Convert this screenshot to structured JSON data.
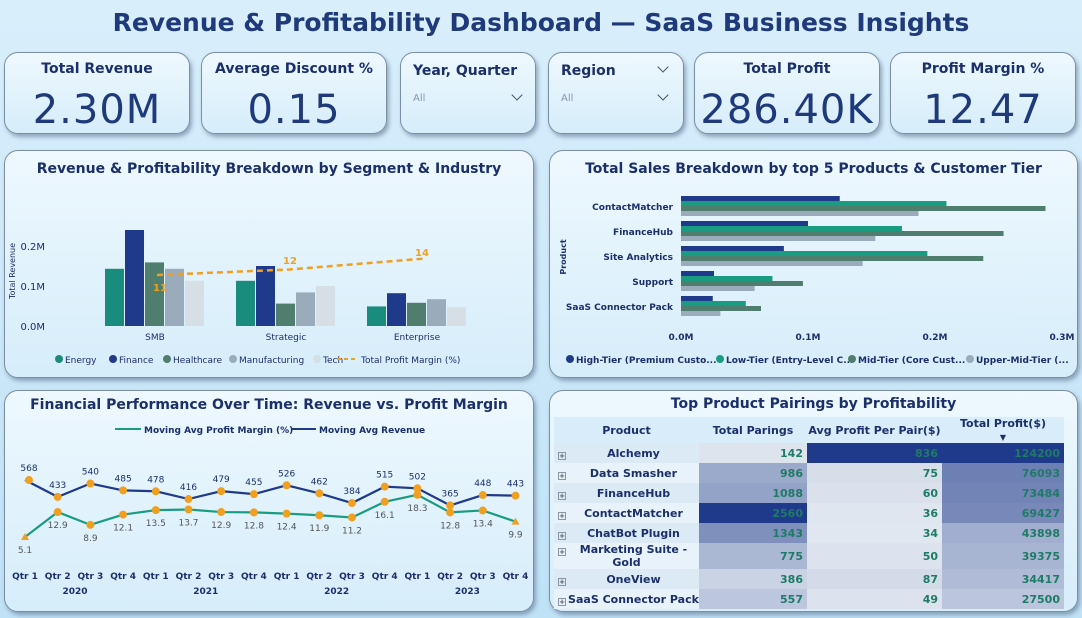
{
  "title": "Revenue & Profitability Dashboard — SaaS Business Insights",
  "kpis": {
    "total_revenue": {
      "label": "Total Revenue",
      "value": "2.30M"
    },
    "avg_discount": {
      "label": "Average Discount %",
      "value": "0.15"
    },
    "total_profit": {
      "label": "Total Profit",
      "value": "286.40K"
    },
    "profit_margin": {
      "label": "Profit Margin %",
      "value": "12.47"
    }
  },
  "slicers": {
    "year_quarter": {
      "label": "Year, Quarter",
      "value": "All"
    },
    "region": {
      "label": "Region",
      "value": "All"
    }
  },
  "colors": {
    "energy": "#1a8c7e",
    "finance": "#1f3a8a",
    "healthcare": "#4f7d6e",
    "manufacturing": "#9aabbb",
    "tech": "#d6dee6",
    "margin_line": "#f0a020"
  },
  "chart_data": [
    {
      "type": "bar",
      "title": "Revenue & Profitability Breakdown by Segment & Industry",
      "ylabel": "Total Revenue",
      "categories": [
        "SMB",
        "Strategic",
        "Enterprise"
      ],
      "y_ticks": [
        "0.0M",
        "0.1M",
        "0.2M"
      ],
      "ylim": [
        0,
        0.25
      ],
      "series": [
        {
          "name": "Energy",
          "values": [
            0.143,
            0.113,
            0.049
          ]
        },
        {
          "name": "Finance",
          "values": [
            0.24,
            0.15,
            0.082
          ]
        },
        {
          "name": "Healthcare",
          "values": [
            0.159,
            0.056,
            0.058
          ]
        },
        {
          "name": "Manufacturing",
          "values": [
            0.143,
            0.084,
            0.067
          ]
        },
        {
          "name": "Tech",
          "values": [
            0.113,
            0.1,
            0.047
          ]
        }
      ],
      "line_series": {
        "name": "Total Profit Margin (%)",
        "values": [
          11,
          12,
          14
        ],
        "labels": [
          "11",
          "12",
          "14"
        ]
      },
      "legend": [
        "Energy",
        "Finance",
        "Healthcare",
        "Manufacturing",
        "Tech",
        "Total Profit Margin (%)"
      ]
    },
    {
      "type": "bar",
      "orientation": "horizontal",
      "title": "Total Sales Breakdown by top 5 Products & Customer Tier",
      "ylabel": "Product",
      "categories": [
        "ContactMatcher",
        "FinanceHub",
        "Site Analytics",
        "Support",
        "SaaS Connector Pack"
      ],
      "x_ticks": [
        "0.0M",
        "0.1M",
        "0.2M",
        "0.3M"
      ],
      "xlim": [
        0,
        0.3
      ],
      "series": [
        {
          "name": "High-Tier (Premium Custo...",
          "values": [
            0.125,
            0.1,
            0.081,
            0.026,
            0.025
          ]
        },
        {
          "name": "Low-Tier (Entry-Level C...",
          "values": [
            0.209,
            0.174,
            0.194,
            0.072,
            0.051
          ]
        },
        {
          "name": "Mid-Tier (Core Cust...",
          "values": [
            0.287,
            0.254,
            0.238,
            0.096,
            0.063
          ]
        },
        {
          "name": "Upper-Mid-Tier (...",
          "values": [
            0.187,
            0.153,
            0.143,
            0.058,
            0.031
          ]
        }
      ]
    },
    {
      "type": "line",
      "title": "Financial Performance Over Time: Revenue vs. Profit Margin",
      "quarters": [
        "Qtr 1",
        "Qtr 2",
        "Qtr 3",
        "Qtr 4",
        "Qtr 1",
        "Qtr 2",
        "Qtr 3",
        "Qtr 4",
        "Qtr 1",
        "Qtr 2",
        "Qtr 3",
        "Qtr 4",
        "Qtr 1",
        "Qtr 2",
        "Qtr 3",
        "Qtr 4"
      ],
      "years": [
        "2020",
        "2021",
        "2022",
        "2023"
      ],
      "series": [
        {
          "name": "Moving Avg Profit Margin (%)",
          "values": [
            5.1,
            12.9,
            8.9,
            12.1,
            13.5,
            13.7,
            12.9,
            12.8,
            12.4,
            11.9,
            11.2,
            16.1,
            18.3,
            12.8,
            13.4,
            9.9
          ],
          "labels": [
            "5.1",
            "12.9",
            "8.9",
            "12.1",
            "13.5",
            "13.7",
            "12.9",
            "12.8",
            "12.4",
            "11.9",
            "11.2",
            "16.1",
            "18.3",
            "12.8",
            "13.4",
            "9.9"
          ]
        },
        {
          "name": "Moving Avg Revenue",
          "values": [
            568,
            433,
            540,
            485,
            478,
            416,
            479,
            455,
            526,
            462,
            384,
            515,
            502,
            365,
            448,
            443
          ],
          "labels": [
            "568",
            "433",
            "540",
            "485",
            "478",
            "416",
            "479",
            "455",
            "526",
            "462",
            "384",
            "515",
            "502",
            "365",
            "448",
            "443"
          ]
        }
      ]
    }
  ],
  "pairings": {
    "title": "Top Product Pairings by Profitability",
    "columns": [
      "Product",
      "Total Parings",
      "Avg Profit Per Pair($)",
      "Total Profit($)"
    ],
    "rows": [
      {
        "product": "Alchemy",
        "parings": "142",
        "avg": "836",
        "profit": "124200"
      },
      {
        "product": "Data Smasher",
        "parings": "986",
        "avg": "75",
        "profit": "76093"
      },
      {
        "product": "FinanceHub",
        "parings": "1088",
        "avg": "60",
        "profit": "73484"
      },
      {
        "product": "ContactMatcher",
        "parings": "2560",
        "avg": "36",
        "profit": "69427"
      },
      {
        "product": "ChatBot Plugin",
        "parings": "1343",
        "avg": "34",
        "profit": "43898"
      },
      {
        "product": "Marketing Suite - Gold",
        "parings": "775",
        "avg": "50",
        "profit": "39375"
      },
      {
        "product": "OneView",
        "parings": "386",
        "avg": "87",
        "profit": "34417"
      },
      {
        "product": "SaaS Connector Pack",
        "parings": "557",
        "avg": "49",
        "profit": "27500"
      }
    ]
  }
}
